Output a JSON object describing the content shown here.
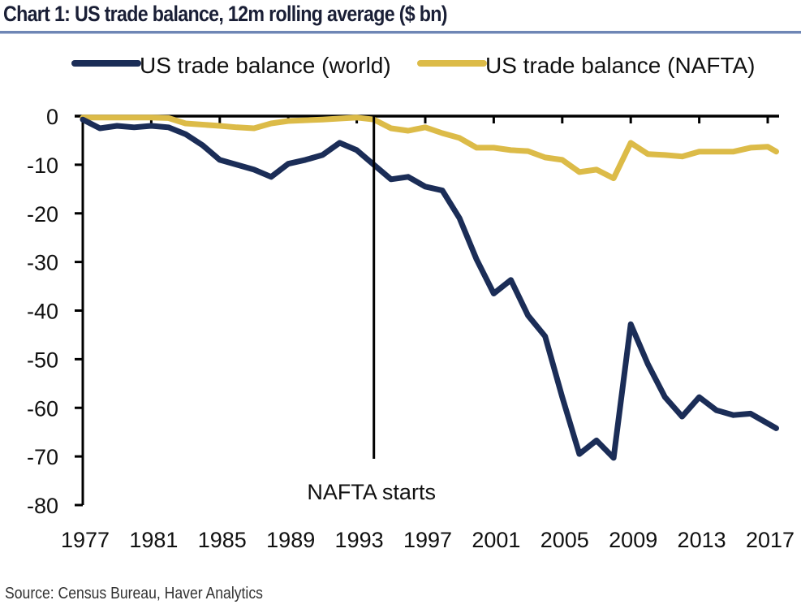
{
  "title": "Chart 1: US trade balance, 12m rolling average ($ bn)",
  "source": "Source: Census Bureau, Haver Analytics",
  "colors": {
    "world": "#1b2d57",
    "nafta": "#dcbb48",
    "axis": "#000000"
  },
  "chart_data": {
    "type": "line",
    "title": "Chart 1: US trade balance, 12m rolling average ($ bn)",
    "xlabel": "",
    "ylabel": "",
    "xlim": [
      1977,
      2017.6
    ],
    "ylim": [
      -80,
      0
    ],
    "x_ticks": [
      1977,
      1981,
      1985,
      1989,
      1993,
      1997,
      2001,
      2005,
      2009,
      2013,
      2017
    ],
    "y_ticks": [
      0,
      -10,
      -20,
      -30,
      -40,
      -50,
      -60,
      -70,
      -80
    ],
    "x_axis_position": "top (at y=0), labels at bottom",
    "grid": false,
    "legend": "top-center",
    "annotations": [
      {
        "text": "NAFTA starts",
        "x": 1994
      }
    ],
    "series": [
      {
        "name": "US trade balance (world)",
        "color": "#1b2d57",
        "x": [
          1977,
          1978,
          1979,
          1980,
          1981,
          1982,
          1983,
          1984,
          1985,
          1986,
          1987,
          1988,
          1989,
          1990,
          1991,
          1992,
          1993,
          1994,
          1995,
          1996,
          1997,
          1998,
          1999,
          2000,
          2001,
          2002,
          2003,
          2004,
          2005,
          2006,
          2007,
          2008,
          2009,
          2010,
          2011,
          2012,
          2013,
          2014,
          2015,
          2016,
          2017.5
        ],
        "values": [
          -0.7,
          -2.5,
          -2.0,
          -2.3,
          -2.0,
          -2.3,
          -3.7,
          -6.0,
          -9.0,
          -10.0,
          -11.0,
          -12.5,
          -9.8,
          -9.0,
          -8.0,
          -5.5,
          -7.0,
          -10.0,
          -13.0,
          -12.5,
          -14.5,
          -15.3,
          -21.0,
          -29.5,
          -36.5,
          -33.7,
          -41.0,
          -45.3,
          -57.8,
          -69.5,
          -66.7,
          -70.3,
          -42.8,
          -51.0,
          -57.8,
          -61.8,
          -57.8,
          -60.5,
          -61.5,
          -61.2,
          -64.2
        ]
      },
      {
        "name": "US trade balance (NAFTA)",
        "color": "#dcbb48",
        "x": [
          1977,
          1979,
          1981,
          1982,
          1983,
          1985,
          1986,
          1987,
          1988,
          1989,
          1991,
          1993,
          1994,
          1995,
          1996,
          1997,
          1998,
          1999,
          2000,
          2001,
          2002,
          2003,
          2004,
          2005,
          2006,
          2007,
          2008,
          2009,
          2010,
          2011,
          2012,
          2013,
          2014,
          2015,
          2016,
          2017,
          2017.5
        ],
        "values": [
          -0.3,
          -0.3,
          -0.3,
          -0.4,
          -1.5,
          -2.0,
          -2.3,
          -2.5,
          -1.5,
          -1.0,
          -0.7,
          -0.3,
          -0.7,
          -2.5,
          -3.0,
          -2.3,
          -3.5,
          -4.5,
          -6.5,
          -6.5,
          -7.0,
          -7.2,
          -8.5,
          -9.0,
          -11.5,
          -11.0,
          -12.8,
          -5.5,
          -7.8,
          -8.0,
          -8.3,
          -7.3,
          -7.3,
          -7.3,
          -6.5,
          -6.3,
          -7.3
        ]
      }
    ]
  },
  "legend": [
    {
      "label": "US trade balance (world)",
      "color": "#1b2d57"
    },
    {
      "label": "US trade balance (NAFTA)",
      "color": "#dcbb48"
    }
  ]
}
